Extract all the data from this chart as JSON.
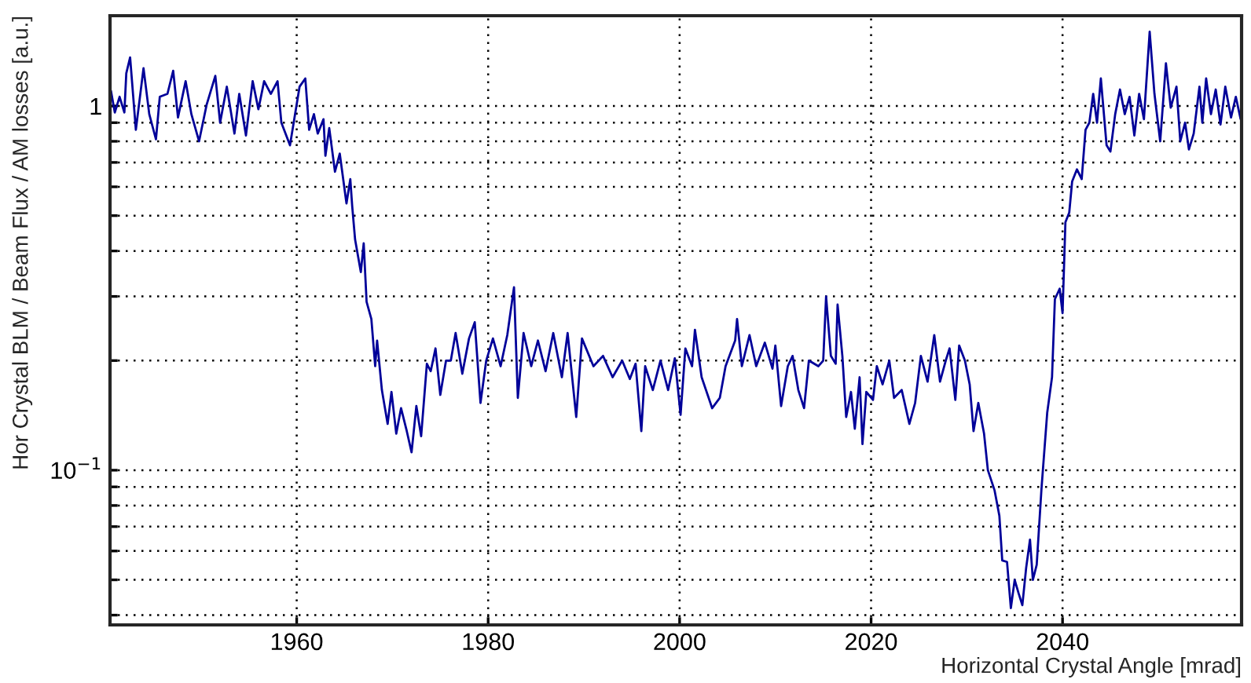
{
  "chart_data": {
    "type": "line",
    "xlabel": "Horizontal Crystal Angle [mrad]",
    "ylabel": "Hor Crystal BLM / Beam Flux / AM losses [a.u.]",
    "xlim": [
      1940.5,
      2058.7
    ],
    "xticks": [
      1960,
      1980,
      2000,
      2020,
      2040
    ],
    "ylim": [
      0.0376,
      1.77
    ],
    "log": "y",
    "yticks": [
      {
        "value": 0.04,
        "label": null
      },
      {
        "value": 0.05,
        "label": null
      },
      {
        "value": 0.06,
        "label": null
      },
      {
        "value": 0.07,
        "label": null
      },
      {
        "value": 0.08,
        "label": null
      },
      {
        "value": 0.09,
        "label": null
      },
      {
        "value": 0.1,
        "label": "10$^{−1}$"
      },
      {
        "value": 0.2,
        "label": null
      },
      {
        "value": 0.3,
        "label": null
      },
      {
        "value": 0.4,
        "label": null
      },
      {
        "value": 0.5,
        "label": null
      },
      {
        "value": 0.6,
        "label": null
      },
      {
        "value": 0.7,
        "label": null
      },
      {
        "value": 0.8,
        "label": null
      },
      {
        "value": 0.9,
        "label": null
      },
      {
        "value": 1,
        "label": "1"
      }
    ],
    "grid": true,
    "legend": false,
    "marker": "none",
    "line_style": "solid",
    "series": [
      {
        "color": "#000099",
        "x": [
          1940.6,
          1941,
          1941.5,
          1942,
          1942.2,
          1942.6,
          1943.2,
          1944,
          1944.6,
          1945.3,
          1945.7,
          1946.5,
          1947.1,
          1947.6,
          1948.4,
          1949,
          1949.8,
          1950.6,
          1951.5,
          1952,
          1952.7,
          1953.5,
          1954,
          1954.7,
          1955.4,
          1956,
          1956.6,
          1957.3,
          1958,
          1958.4,
          1959.3,
          1960.3,
          1960.9,
          1961.3,
          1961.8,
          1962.2,
          1962.8,
          1963,
          1963.4,
          1964,
          1964.5,
          1965.2,
          1965.6,
          1965.8,
          1966.1,
          1966.7,
          1967,
          1967.3,
          1967.8,
          1968.2,
          1968.4,
          1968.9,
          1969.5,
          1969.9,
          1970.4,
          1970.9,
          1971.5,
          1972,
          1972.5,
          1973,
          1973.6,
          1974,
          1974.5,
          1975,
          1975.6,
          1976.1,
          1976.6,
          1977.3,
          1978,
          1978.6,
          1979.2,
          1979.8,
          1980.5,
          1981.3,
          1982,
          1982.7,
          1983.1,
          1983.7,
          1984.5,
          1985.2,
          1986,
          1986.8,
          1987.7,
          1988.3,
          1989.2,
          1989.8,
          1991,
          1992,
          1993,
          1994,
          1994.8,
          1995.4,
          1996,
          1996.4,
          1997.2,
          1998,
          1998.8,
          1999.5,
          2000.1,
          2000.6,
          2001.3,
          2001.6,
          2002.3,
          2003.4,
          2004.2,
          2004.8,
          2005.8,
          2006,
          2006.5,
          2007.3,
          2008,
          2008.9,
          2009.7,
          2010,
          2010.6,
          2011.3,
          2011.8,
          2012.4,
          2013,
          2013.5,
          2014.5,
          2015,
          2015.3,
          2015.8,
          2016.3,
          2016.5,
          2017,
          2017.4,
          2017.9,
          2018.3,
          2018.8,
          2019.1,
          2019.5,
          2020.2,
          2020.6,
          2021.2,
          2021.9,
          2022.4,
          2023.2,
          2024,
          2024.6,
          2025.2,
          2025.9,
          2026.6,
          2027.2,
          2027.8,
          2028.2,
          2028.8,
          2029.2,
          2029.8,
          2030.3,
          2030.7,
          2031.2,
          2031.8,
          2032.2,
          2032.9,
          2033.4,
          2033.7,
          2034.2,
          2034.6,
          2035,
          2035.4,
          2035.8,
          2036.2,
          2036.6,
          2036.9,
          2037.3,
          2037.8,
          2038.4,
          2038.9,
          2039.2,
          2039.7,
          2040,
          2040.3,
          2040.7,
          2041,
          2041.5,
          2042,
          2042.4,
          2042.8,
          2043.2,
          2043.6,
          2044,
          2044.6,
          2045,
          2045.5,
          2046,
          2046.5,
          2047,
          2047.5,
          2048,
          2048.5,
          2049.1,
          2049.6,
          2050.2,
          2050.8,
          2051.3,
          2051.9,
          2052.3,
          2052.8,
          2053.2,
          2053.7,
          2054.3,
          2054.6,
          2055,
          2055.5,
          2056,
          2056.5,
          2057,
          2057.6,
          2058.1,
          2058.6
        ],
        "values": [
          1.1,
          0.96,
          1.06,
          0.96,
          1.23,
          1.36,
          0.86,
          1.27,
          0.95,
          0.81,
          1.06,
          1.08,
          1.25,
          0.93,
          1.17,
          0.95,
          0.8,
          1.01,
          1.21,
          0.9,
          1.13,
          0.84,
          1.08,
          0.83,
          1.17,
          0.98,
          1.17,
          1.08,
          1.17,
          0.9,
          0.78,
          1.13,
          1.19,
          0.86,
          0.95,
          0.84,
          0.92,
          0.73,
          0.87,
          0.66,
          0.74,
          0.54,
          0.63,
          0.53,
          0.43,
          0.35,
          0.42,
          0.29,
          0.26,
          0.193,
          0.227,
          0.166,
          0.134,
          0.164,
          0.126,
          0.148,
          0.128,
          0.112,
          0.15,
          0.124,
          0.196,
          0.187,
          0.216,
          0.161,
          0.2,
          0.2,
          0.238,
          0.184,
          0.23,
          0.255,
          0.153,
          0.2,
          0.23,
          0.193,
          0.235,
          0.318,
          0.158,
          0.238,
          0.193,
          0.227,
          0.187,
          0.238,
          0.18,
          0.238,
          0.14,
          0.23,
          0.193,
          0.206,
          0.18,
          0.2,
          0.178,
          0.196,
          0.128,
          0.193,
          0.166,
          0.2,
          0.166,
          0.203,
          0.142,
          0.216,
          0.193,
          0.243,
          0.18,
          0.148,
          0.158,
          0.193,
          0.227,
          0.26,
          0.193,
          0.235,
          0.193,
          0.224,
          0.19,
          0.22,
          0.15,
          0.193,
          0.206,
          0.166,
          0.148,
          0.2,
          0.193,
          0.2,
          0.3,
          0.206,
          0.196,
          0.285,
          0.206,
          0.14,
          0.164,
          0.13,
          0.18,
          0.118,
          0.164,
          0.156,
          0.193,
          0.172,
          0.2,
          0.158,
          0.166,
          0.134,
          0.153,
          0.206,
          0.175,
          0.235,
          0.175,
          0.2,
          0.216,
          0.156,
          0.22,
          0.2,
          0.172,
          0.128,
          0.153,
          0.126,
          0.1,
          0.088,
          0.075,
          0.0565,
          0.056,
          0.0418,
          0.05,
          0.046,
          0.0426,
          0.054,
          0.0645,
          0.05,
          0.055,
          0.089,
          0.144,
          0.18,
          0.295,
          0.315,
          0.27,
          0.48,
          0.51,
          0.62,
          0.67,
          0.63,
          0.86,
          0.9,
          1.08,
          0.9,
          1.19,
          0.78,
          0.75,
          0.95,
          1.11,
          0.95,
          1.06,
          0.83,
          1.08,
          0.92,
          1.6,
          1.08,
          0.8,
          1.31,
          0.99,
          1.13,
          0.8,
          0.9,
          0.76,
          0.84,
          1.13,
          0.9,
          1.19,
          0.95,
          1.11,
          0.89,
          1.13,
          0.93,
          1.06,
          0.92
        ]
      }
    ]
  }
}
